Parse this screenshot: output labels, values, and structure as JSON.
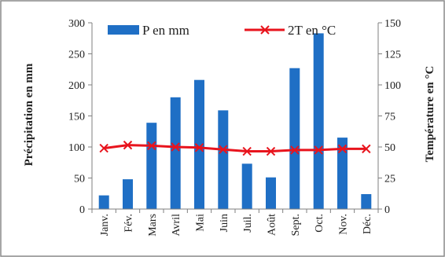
{
  "chart_data": {
    "type": "bar",
    "categories": [
      "Janv.",
      "Fév.",
      "Mars",
      "Avril",
      "Mai",
      "Juin",
      "Juil.",
      "Août",
      "Sept.",
      "Oct.",
      "Nov.",
      "Déc."
    ],
    "series": [
      {
        "name": "P en mm",
        "kind": "bar",
        "axis": "left",
        "color": "#1f6fc5",
        "values": [
          22,
          48,
          139,
          180,
          208,
          159,
          73,
          51,
          227,
          283,
          115,
          24
        ]
      },
      {
        "name": "2T en °C",
        "kind": "line",
        "axis": "right",
        "color": "#e8141d",
        "marker": "x",
        "values": [
          49,
          51.5,
          51,
          50,
          49.5,
          48,
          46.5,
          46.5,
          47.5,
          47.5,
          48.5,
          48.5
        ]
      }
    ],
    "ylabel_left": "Précipitation en mm",
    "ylabel_right": "Température en °C",
    "ylim_left": [
      0,
      300
    ],
    "ylim_right": [
      0,
      150
    ],
    "yticks_left": [
      "0",
      "50",
      "100",
      "150",
      "200",
      "250",
      "300"
    ],
    "yticks_right": [
      "0",
      "25",
      "50",
      "75",
      "100",
      "125",
      "150"
    ],
    "legend_position": "top",
    "grid": false
  }
}
